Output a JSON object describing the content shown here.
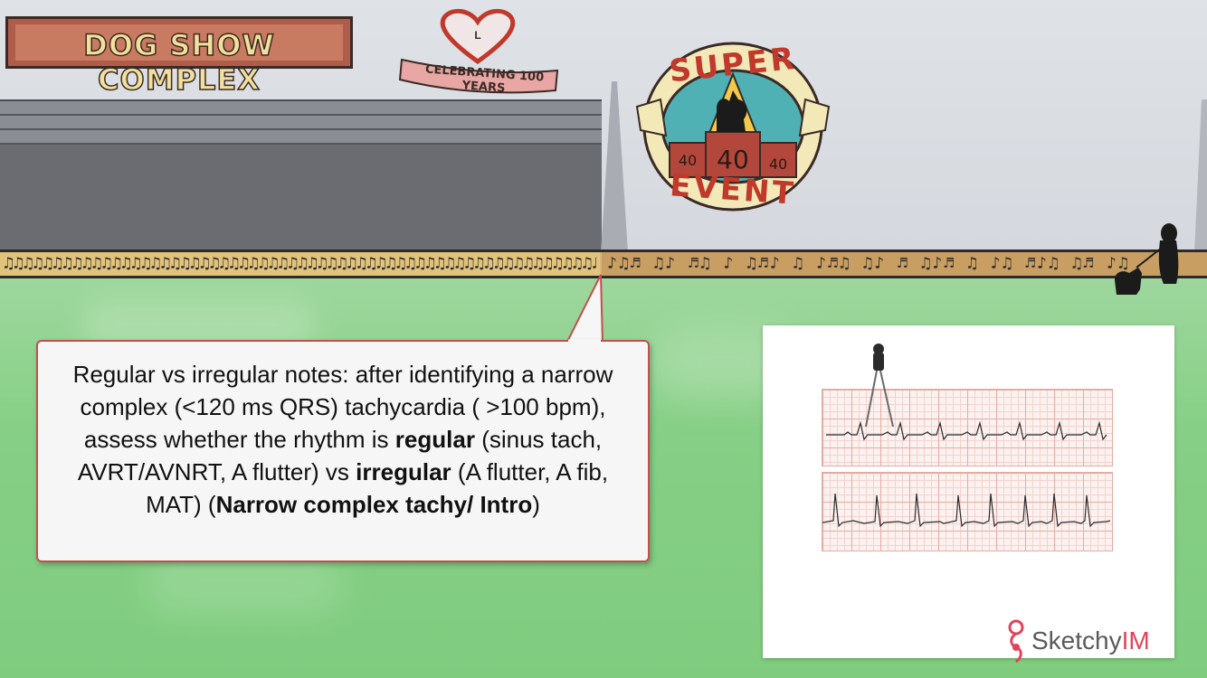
{
  "scene": {
    "sign_text": "DOG SHOW COMPLEX",
    "banner_text": "CELEBRATING 100 YEARS",
    "heart_letter": "L",
    "badge": {
      "top_text": "SUPER",
      "bottom_text": "EVENT",
      "podium_left": "40",
      "podium_center": "40",
      "podium_right": "40"
    }
  },
  "callout": {
    "line1": "Regular vs irregular notes: after identifying a narrow complex (<120 ms QRS) tachycardia ( >100 bpm), assess whether the rhythm is",
    "regular_bold": "regular",
    "regular_rest": "(sinus tach, AVRT/AVNRT, A flutter) vs",
    "irregular_bold": "irregular",
    "irregular_rest": "(A flutter, A fib, MAT) (",
    "ref_bold": "Narrow complex tachy/ Intro",
    "ref_close": ")"
  },
  "logo": {
    "brand": "Sketchy",
    "suffix": "IM"
  },
  "colors": {
    "callout_border": "#c0504d",
    "grass": "#86cf86",
    "sky": "#d4d8de",
    "logo_accent": "#e0445a"
  }
}
